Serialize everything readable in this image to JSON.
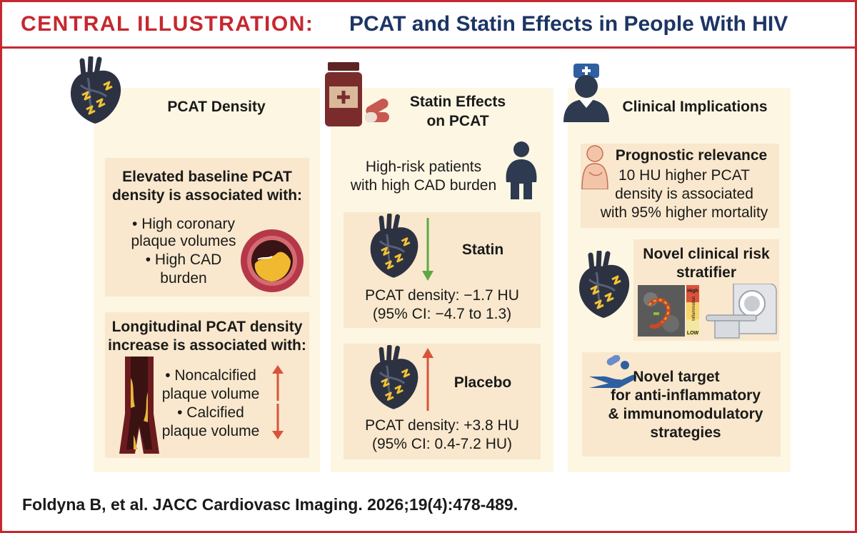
{
  "header": {
    "label": "CENTRAL ILLUSTRATION:",
    "title": "PCAT and Statin Effects in People With HIV"
  },
  "col1": {
    "title": "PCAT Density",
    "box1": {
      "heading": [
        "Elevated baseline PCAT",
        "density is associated with:"
      ],
      "bullets": [
        "• High coronary",
        "plaque volumes",
        "• High CAD",
        "burden"
      ]
    },
    "box2": {
      "heading": [
        "Longitudinal PCAT density",
        "increase is associated with:"
      ],
      "bullets": [
        "• Noncalcified",
        "plaque volume",
        "• Calcified",
        "plaque volume"
      ]
    }
  },
  "col2": {
    "title": [
      "Statin Effects",
      "on PCAT"
    ],
    "patients": [
      "High-risk patients",
      "with high CAD burden"
    ],
    "statin": {
      "label": "Statin",
      "result": [
        "PCAT density: −1.7 HU",
        "(95% CI: −4.7 to 1.3)"
      ]
    },
    "placebo": {
      "label": "Placebo",
      "result": [
        "PCAT density: +3.8 HU",
        "(95% CI: 0.4-7.2 HU)"
      ]
    }
  },
  "col3": {
    "title": "Clinical Implications",
    "prognostic": {
      "heading": "Prognostic relevance",
      "lines": [
        "10 HU higher PCAT",
        "density is associated",
        "with 95% higher mortality"
      ]
    },
    "stratifier": {
      "heading": [
        "Novel clinical risk",
        "stratifier"
      ],
      "scale_high": "High",
      "scale_mid": "Inflammation",
      "scale_low": "LOW"
    },
    "target": {
      "lines": [
        "Novel target",
        "for anti-inflammatory",
        "& immunomodulatory",
        "strategies"
      ]
    }
  },
  "citation": "Foldyna B, et al. JACC Cardiovasc Imaging. 2026;19(4):478-489.",
  "colors": {
    "red": "#c5282f",
    "navy": "#1c3566",
    "panel": "#fdf6e3",
    "box": "#f9e8cd",
    "arrow_down": "#5fa742",
    "arrow_up": "#d9533a"
  }
}
